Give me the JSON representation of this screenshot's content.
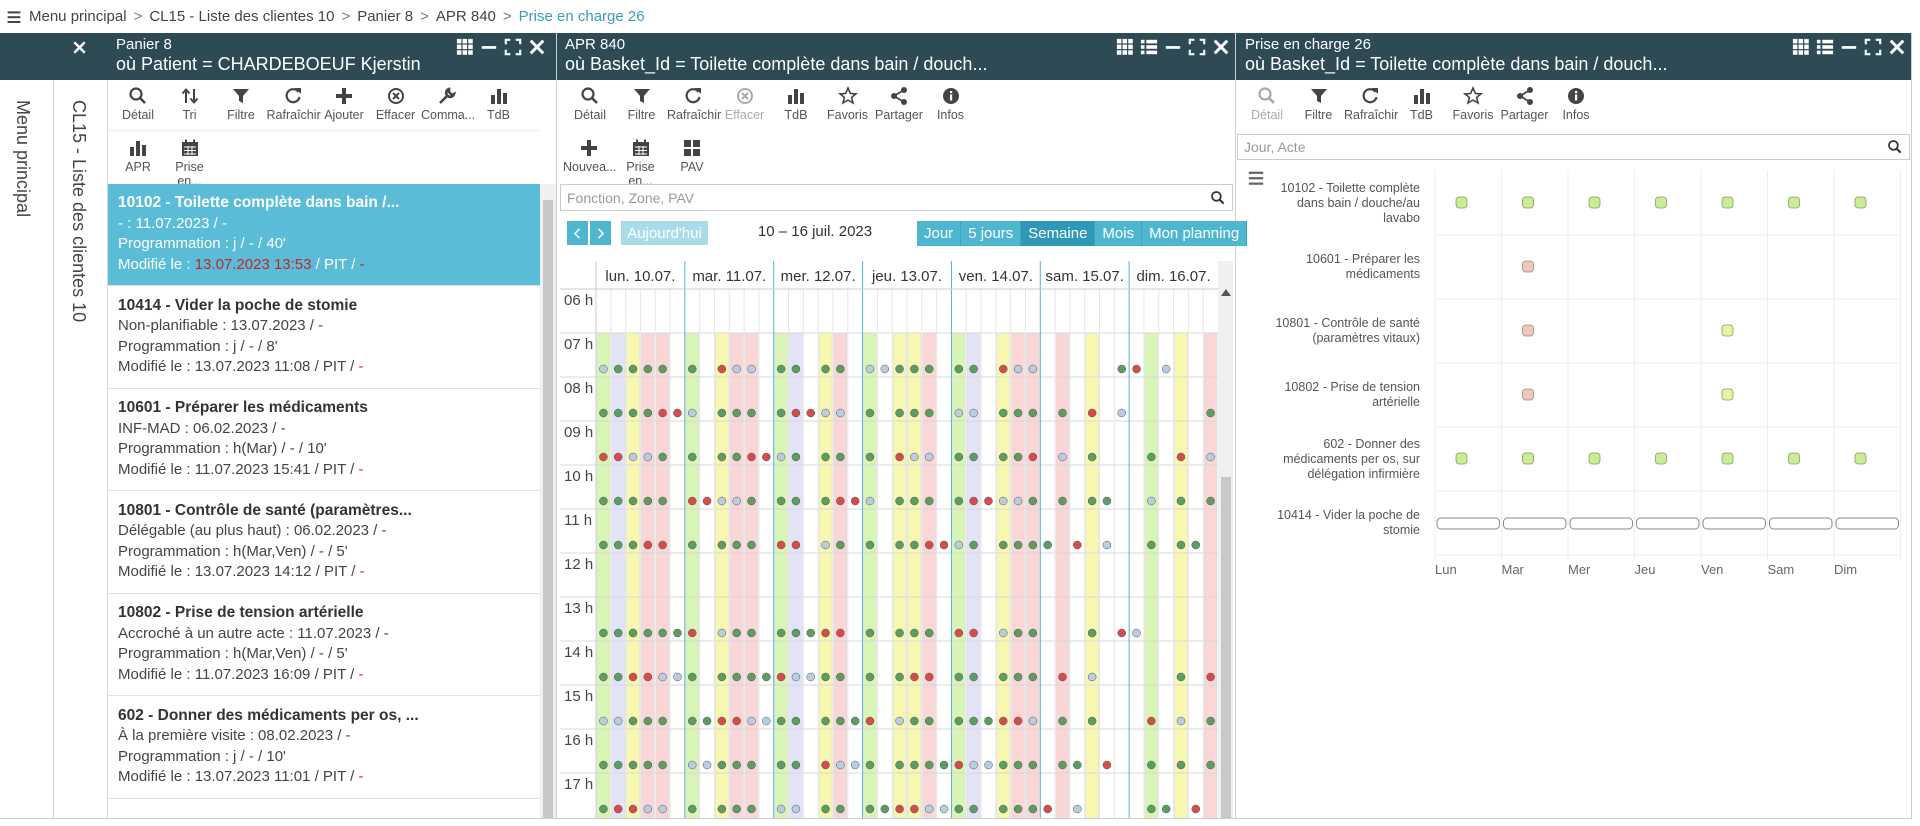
{
  "breadcrumb": [
    "Menu principal",
    "CL15 - Liste des clientes 10",
    "Panier 8",
    "APR 840",
    "Prise en charge 26"
  ],
  "breadcrumb_separator": ">",
  "sidebar": [
    "Menu principal",
    "CL15 - Liste des clientes 10"
  ],
  "panel1": {
    "title": "Panier 8",
    "subtitle": "où Patient = CHARDEBOEUF Kjerstin",
    "toolbar": [
      "Détail",
      "Tri",
      "Filtre",
      "Rafraîchir",
      "Ajouter",
      "Effacer",
      "Comma...",
      "TdB"
    ],
    "toolbar2": [
      "APR",
      "Prise en..."
    ],
    "items": [
      {
        "title": "10102 - Toilette complète dans bain /...",
        "lines": [
          "- : 11.07.2023 / -",
          "Programmation : j / - / 40'"
        ],
        "modified_label": "Modifié le :",
        "modified_date": "13.07.2023 13:53",
        "modified_rest": "/ PIT /",
        "modified_flag": "-"
      },
      {
        "title": "10414 - Vider la poche de stomie",
        "lines": [
          "Non-planifiable : 13.07.2023 / -",
          "Programmation : j / - / 8'"
        ],
        "modified_label": "Modifié le :",
        "modified_date": "13.07.2023 11:08",
        "modified_rest": "/ PIT /",
        "modified_flag": "-"
      },
      {
        "title": "10601 - Préparer les médicaments",
        "lines": [
          "INF-MAD : 06.02.2023 / -",
          "Programmation : h(Mar) / - / 10'"
        ],
        "modified_label": "Modifié le :",
        "modified_date": "11.07.2023 15:41",
        "modified_rest": "/ PIT /",
        "modified_flag": "-"
      },
      {
        "title": "10801 - Contrôle de santé (paramètres...",
        "lines": [
          "Délégable (au plus haut) : 06.02.2023 / -",
          "Programmation : h(Mar,Ven) / - / 5'"
        ],
        "modified_label": "Modifié le :",
        "modified_date": "13.07.2023 14:12",
        "modified_rest": "/ PIT /",
        "modified_flag": "-"
      },
      {
        "title": "10802 - Prise de tension artérielle",
        "lines": [
          "Accroché à un autre acte : 11.07.2023 / -",
          "Programmation : h(Mar,Ven) / - / 5'"
        ],
        "modified_label": "Modifié le :",
        "modified_date": "11.07.2023 16:09",
        "modified_rest": "/ PIT /",
        "modified_flag": "-"
      },
      {
        "title": "602 - Donner des médicaments per os, ...",
        "lines": [
          "À la première visite : 08.02.2023 / -",
          "Programmation : j / - / 10'"
        ],
        "modified_label": "Modifié le :",
        "modified_date": "13.07.2023 11:01",
        "modified_rest": "/ PIT /",
        "modified_flag": "-"
      }
    ]
  },
  "panel2": {
    "title": "APR 840",
    "subtitle": "où Basket_Id = Toilette complète dans bain / douch...",
    "toolbar": [
      "Détail",
      "Filtre",
      "Rafraîchir",
      "Effacer",
      "TdB",
      "Favoris",
      "Partager",
      "Infos"
    ],
    "toolbar2": [
      "Nouvea...",
      "Prise en...",
      "PAV"
    ],
    "search_placeholder": "Fonction, Zone, PAV",
    "today": "Aujourd'hui",
    "range": "10 – 16 juil. 2023",
    "views": [
      "Jour",
      "5 jours",
      "Semaine",
      "Mois",
      "Mon planning"
    ],
    "active_view": "Semaine",
    "calendar": {
      "days": [
        "lun. 10.07.",
        "mar. 11.07.",
        "mer. 12.07.",
        "jeu. 13.07.",
        "ven. 14.07.",
        "sam. 15.07.",
        "dim. 16.07."
      ],
      "hours": [
        "06 h",
        "07 h",
        "08 h",
        "09 h",
        "10 h",
        "11 h",
        "12 h",
        "13 h",
        "14 h",
        "15 h",
        "16 h",
        "17 h"
      ]
    }
  },
  "panel3": {
    "title": "Prise en charge 26",
    "subtitle": "où Basket_Id = Toilette complète dans bain / douch...",
    "toolbar": [
      "Détail",
      "Filtre",
      "Rafraîchir",
      "TdB",
      "Favoris",
      "Partager",
      "Infos"
    ],
    "search_placeholder": "Jour, Acte",
    "matrix": {
      "days": [
        "Lun",
        "Mar",
        "Mer",
        "Jeu",
        "Ven",
        "Sam",
        "Dim"
      ],
      "rows": [
        {
          "label": "10102 - Toilette complète dans bain / douche/au lavabo",
          "marks": [
            "green",
            "green",
            "green",
            "green",
            "green",
            "green",
            "green"
          ]
        },
        {
          "label": "10601 - Préparer les médicaments",
          "marks": [
            null,
            "pink",
            null,
            null,
            null,
            null,
            null
          ]
        },
        {
          "label": "10801 - Contrôle de santé (paramètres vitaux)",
          "marks": [
            null,
            "pink",
            null,
            null,
            "yellow",
            null,
            null
          ]
        },
        {
          "label": "10802 - Prise de tension artérielle",
          "marks": [
            null,
            "pink",
            null,
            null,
            "yellow",
            null,
            null
          ]
        },
        {
          "label": "602 - Donner des médicaments per os, sur délégation infirmière",
          "marks": [
            "green",
            "green",
            "green",
            "green",
            "green",
            "green",
            "green"
          ]
        },
        {
          "label": "10414 - Vider la poche de stomie",
          "marks": [
            "outline",
            "outline",
            "outline",
            "outline",
            "outline",
            "outline",
            "outline"
          ]
        }
      ]
    }
  }
}
